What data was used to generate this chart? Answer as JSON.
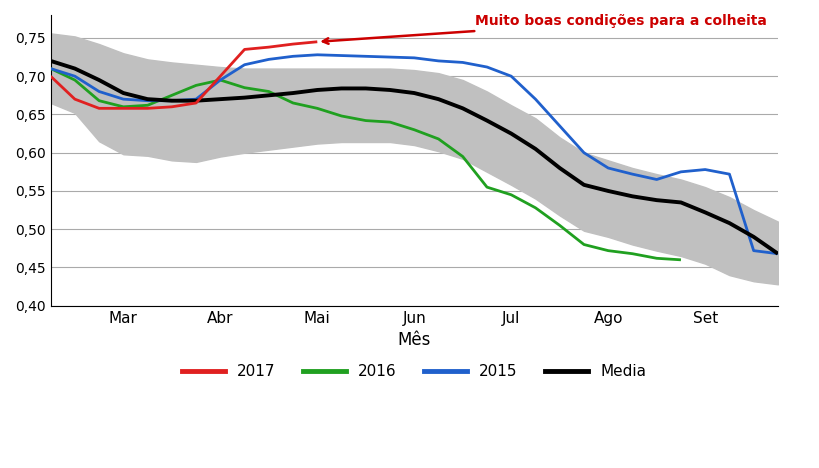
{
  "xlabel": "Mês",
  "ylim": [
    0.4,
    0.78
  ],
  "yticks": [
    0.4,
    0.45,
    0.5,
    0.55,
    0.6,
    0.65,
    0.7,
    0.75
  ],
  "background_color": "#ffffff",
  "annotation_text": "Muito boas condições para a colheita",
  "annotation_color": "#cc0000",
  "color_2017": "#e02020",
  "color_2016": "#20a020",
  "color_2015": "#2060cc",
  "color_media": "#000000",
  "color_band": "#c0c0c0",
  "linewidth": 2.0,
  "tick_labels": [
    "Mar",
    "Abr",
    "Mai",
    "Jun",
    "Jul",
    "Ago",
    "Set"
  ],
  "tick_positions": [
    3,
    7,
    11,
    15,
    19,
    23,
    27
  ],
  "xlim": [
    0,
    30
  ],
  "n_points": 31,
  "line_2017_x": [
    0,
    1,
    2,
    3,
    4,
    5,
    6,
    7,
    8,
    9,
    10,
    11
  ],
  "line_2017_y": [
    0.7,
    0.67,
    0.658,
    0.658,
    0.658,
    0.66,
    0.665,
    0.7,
    0.735,
    0.738,
    0.742,
    0.745
  ],
  "line_2016_x": [
    0,
    1,
    2,
    3,
    4,
    5,
    6,
    7,
    8,
    9,
    10,
    11,
    12,
    13,
    14,
    15,
    16,
    17,
    18,
    19,
    20,
    21,
    22,
    23,
    24,
    25,
    26
  ],
  "line_2016_y": [
    0.71,
    0.695,
    0.668,
    0.66,
    0.662,
    0.675,
    0.688,
    0.695,
    0.685,
    0.68,
    0.665,
    0.658,
    0.648,
    0.642,
    0.64,
    0.63,
    0.618,
    0.595,
    0.555,
    0.545,
    0.528,
    0.505,
    0.48,
    0.472,
    0.468,
    0.462,
    0.46
  ],
  "line_2015_x": [
    0,
    1,
    2,
    3,
    4,
    5,
    6,
    7,
    8,
    9,
    10,
    11,
    12,
    13,
    14,
    15,
    16,
    17,
    18,
    19,
    20,
    21,
    22,
    23,
    24,
    25,
    26,
    27,
    28,
    29,
    30
  ],
  "line_2015_y": [
    0.71,
    0.7,
    0.68,
    0.67,
    0.668,
    0.668,
    0.67,
    0.695,
    0.715,
    0.722,
    0.726,
    0.728,
    0.727,
    0.726,
    0.725,
    0.724,
    0.72,
    0.718,
    0.712,
    0.7,
    0.67,
    0.635,
    0.6,
    0.58,
    0.572,
    0.565,
    0.575,
    0.578,
    0.572,
    0.472,
    0.468
  ],
  "line_media_x": [
    0,
    1,
    2,
    3,
    4,
    5,
    6,
    7,
    8,
    9,
    10,
    11,
    12,
    13,
    14,
    15,
    16,
    17,
    18,
    19,
    20,
    21,
    22,
    23,
    24,
    25,
    26,
    27,
    28,
    29,
    30
  ],
  "line_media_y": [
    0.72,
    0.71,
    0.695,
    0.678,
    0.67,
    0.668,
    0.668,
    0.67,
    0.672,
    0.675,
    0.678,
    0.682,
    0.684,
    0.684,
    0.682,
    0.678,
    0.67,
    0.658,
    0.642,
    0.625,
    0.605,
    0.58,
    0.558,
    0.55,
    0.543,
    0.538,
    0.535,
    0.522,
    0.508,
    0.49,
    0.468
  ],
  "band_upper_x": [
    0,
    1,
    2,
    3,
    4,
    5,
    6,
    7,
    8,
    9,
    10,
    11,
    12,
    13,
    14,
    15,
    16,
    17,
    18,
    19,
    20,
    21,
    22,
    23,
    24,
    25,
    26,
    27,
    28,
    29,
    30
  ],
  "band_upper_y": [
    0.756,
    0.752,
    0.742,
    0.73,
    0.722,
    0.718,
    0.715,
    0.712,
    0.71,
    0.71,
    0.71,
    0.71,
    0.71,
    0.71,
    0.71,
    0.708,
    0.704,
    0.695,
    0.68,
    0.662,
    0.645,
    0.62,
    0.6,
    0.59,
    0.58,
    0.572,
    0.565,
    0.555,
    0.542,
    0.525,
    0.51
  ],
  "band_lower_x": [
    0,
    1,
    2,
    3,
    4,
    5,
    6,
    7,
    8,
    9,
    10,
    11,
    12,
    13,
    14,
    15,
    16,
    17,
    18,
    19,
    20,
    21,
    22,
    23,
    24,
    25,
    26,
    27,
    28,
    29,
    30
  ],
  "band_lower_y": [
    0.665,
    0.652,
    0.615,
    0.598,
    0.596,
    0.59,
    0.588,
    0.595,
    0.6,
    0.604,
    0.608,
    0.612,
    0.614,
    0.614,
    0.614,
    0.61,
    0.602,
    0.592,
    0.575,
    0.558,
    0.54,
    0.518,
    0.498,
    0.49,
    0.48,
    0.472,
    0.465,
    0.455,
    0.44,
    0.432,
    0.428
  ]
}
